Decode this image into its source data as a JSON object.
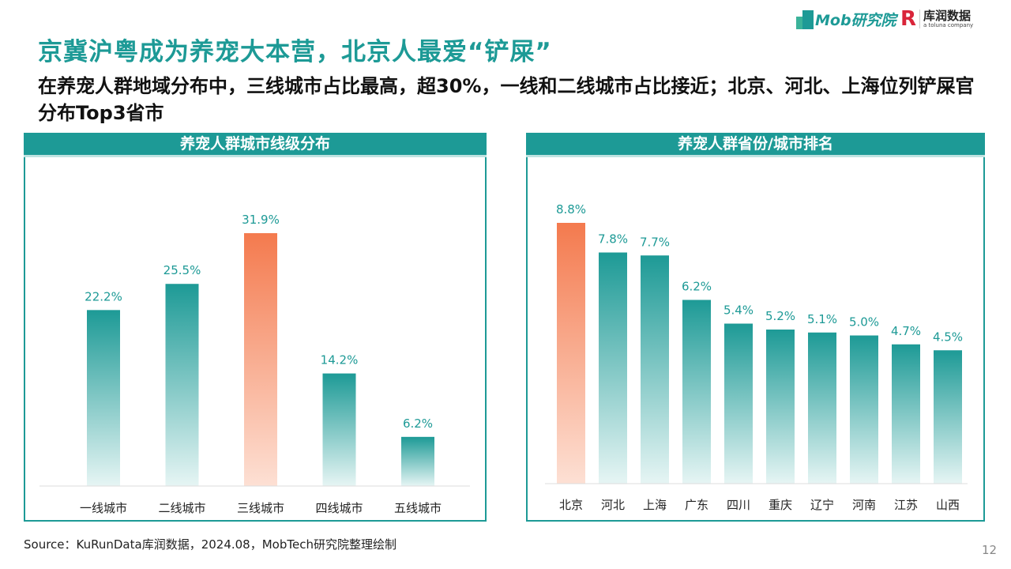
{
  "header": {
    "title": "京冀沪粤成为养宠大本营，北京人最爱“铲屎”",
    "subtitle": "在养宠人群地域分布中，三线城市占比最高，超30%，一线和二线城市占比接近；北京、河北、上海位列铲屎官分布Top3省市"
  },
  "logos": {
    "mob": "Mob研究院",
    "kurun": "库润数据",
    "kurun_tagline": "a toluna company"
  },
  "colors": {
    "accent": "#1d9a96",
    "highlight": "#f47a4e"
  },
  "chart_data": [
    {
      "type": "bar",
      "title": "养宠人群城市线级分布",
      "categories": [
        "一线城市",
        "二线城市",
        "三线城市",
        "四线城市",
        "五线城市"
      ],
      "values": [
        22.2,
        25.5,
        31.9,
        14.2,
        6.2
      ],
      "labels": [
        "22.2%",
        "25.5%",
        "31.9%",
        "14.2%",
        "6.2%"
      ],
      "highlight_index": 2,
      "ylim": [
        0,
        35
      ],
      "grid": false
    },
    {
      "type": "bar",
      "title": "养宠人群省份/城市排名",
      "categories": [
        "北京",
        "河北",
        "上海",
        "广东",
        "四川",
        "重庆",
        "辽宁",
        "河南",
        "江苏",
        "山西"
      ],
      "values": [
        8.8,
        7.8,
        7.7,
        6.2,
        5.4,
        5.2,
        5.1,
        5.0,
        4.7,
        4.5
      ],
      "labels": [
        "8.8%",
        "7.8%",
        "7.7%",
        "6.2%",
        "5.4%",
        "5.2%",
        "5.1%",
        "5.0%",
        "4.7%",
        "4.5%"
      ],
      "highlight_index": 0,
      "ylim": [
        0,
        10
      ],
      "grid": false
    }
  ],
  "footer": {
    "source": "Source：KuRunData库润数据，2024.08，MobTech研究院整理绘制",
    "page": "12"
  }
}
